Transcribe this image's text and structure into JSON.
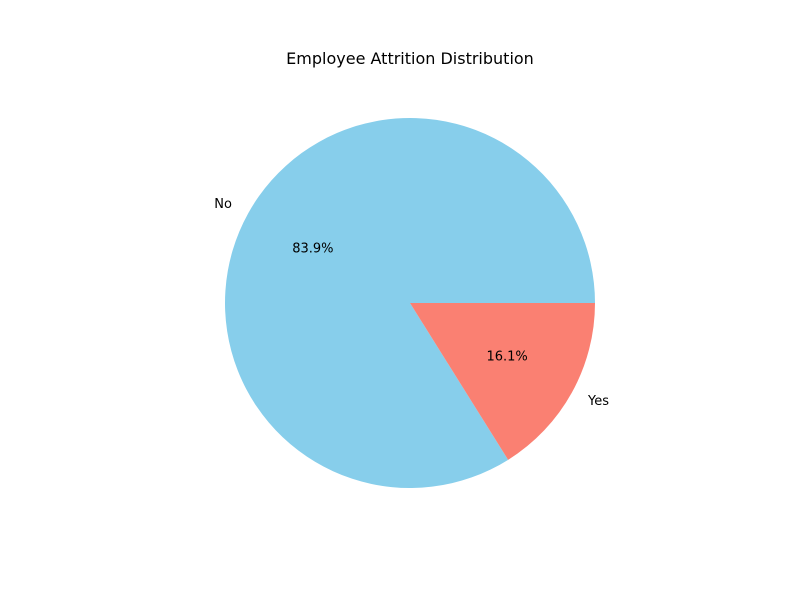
{
  "chart_data": {
    "type": "pie",
    "title": "Employee Attrition Distribution",
    "slices": [
      {
        "label": "No",
        "value": 83.9,
        "pct_label": "83.9%",
        "color": "#87CEEB"
      },
      {
        "label": "Yes",
        "value": 16.1,
        "pct_label": "16.1%",
        "color": "#FA8072"
      }
    ],
    "start_angle_deg": 0,
    "direction": "counterclockwise",
    "legend": "none"
  }
}
